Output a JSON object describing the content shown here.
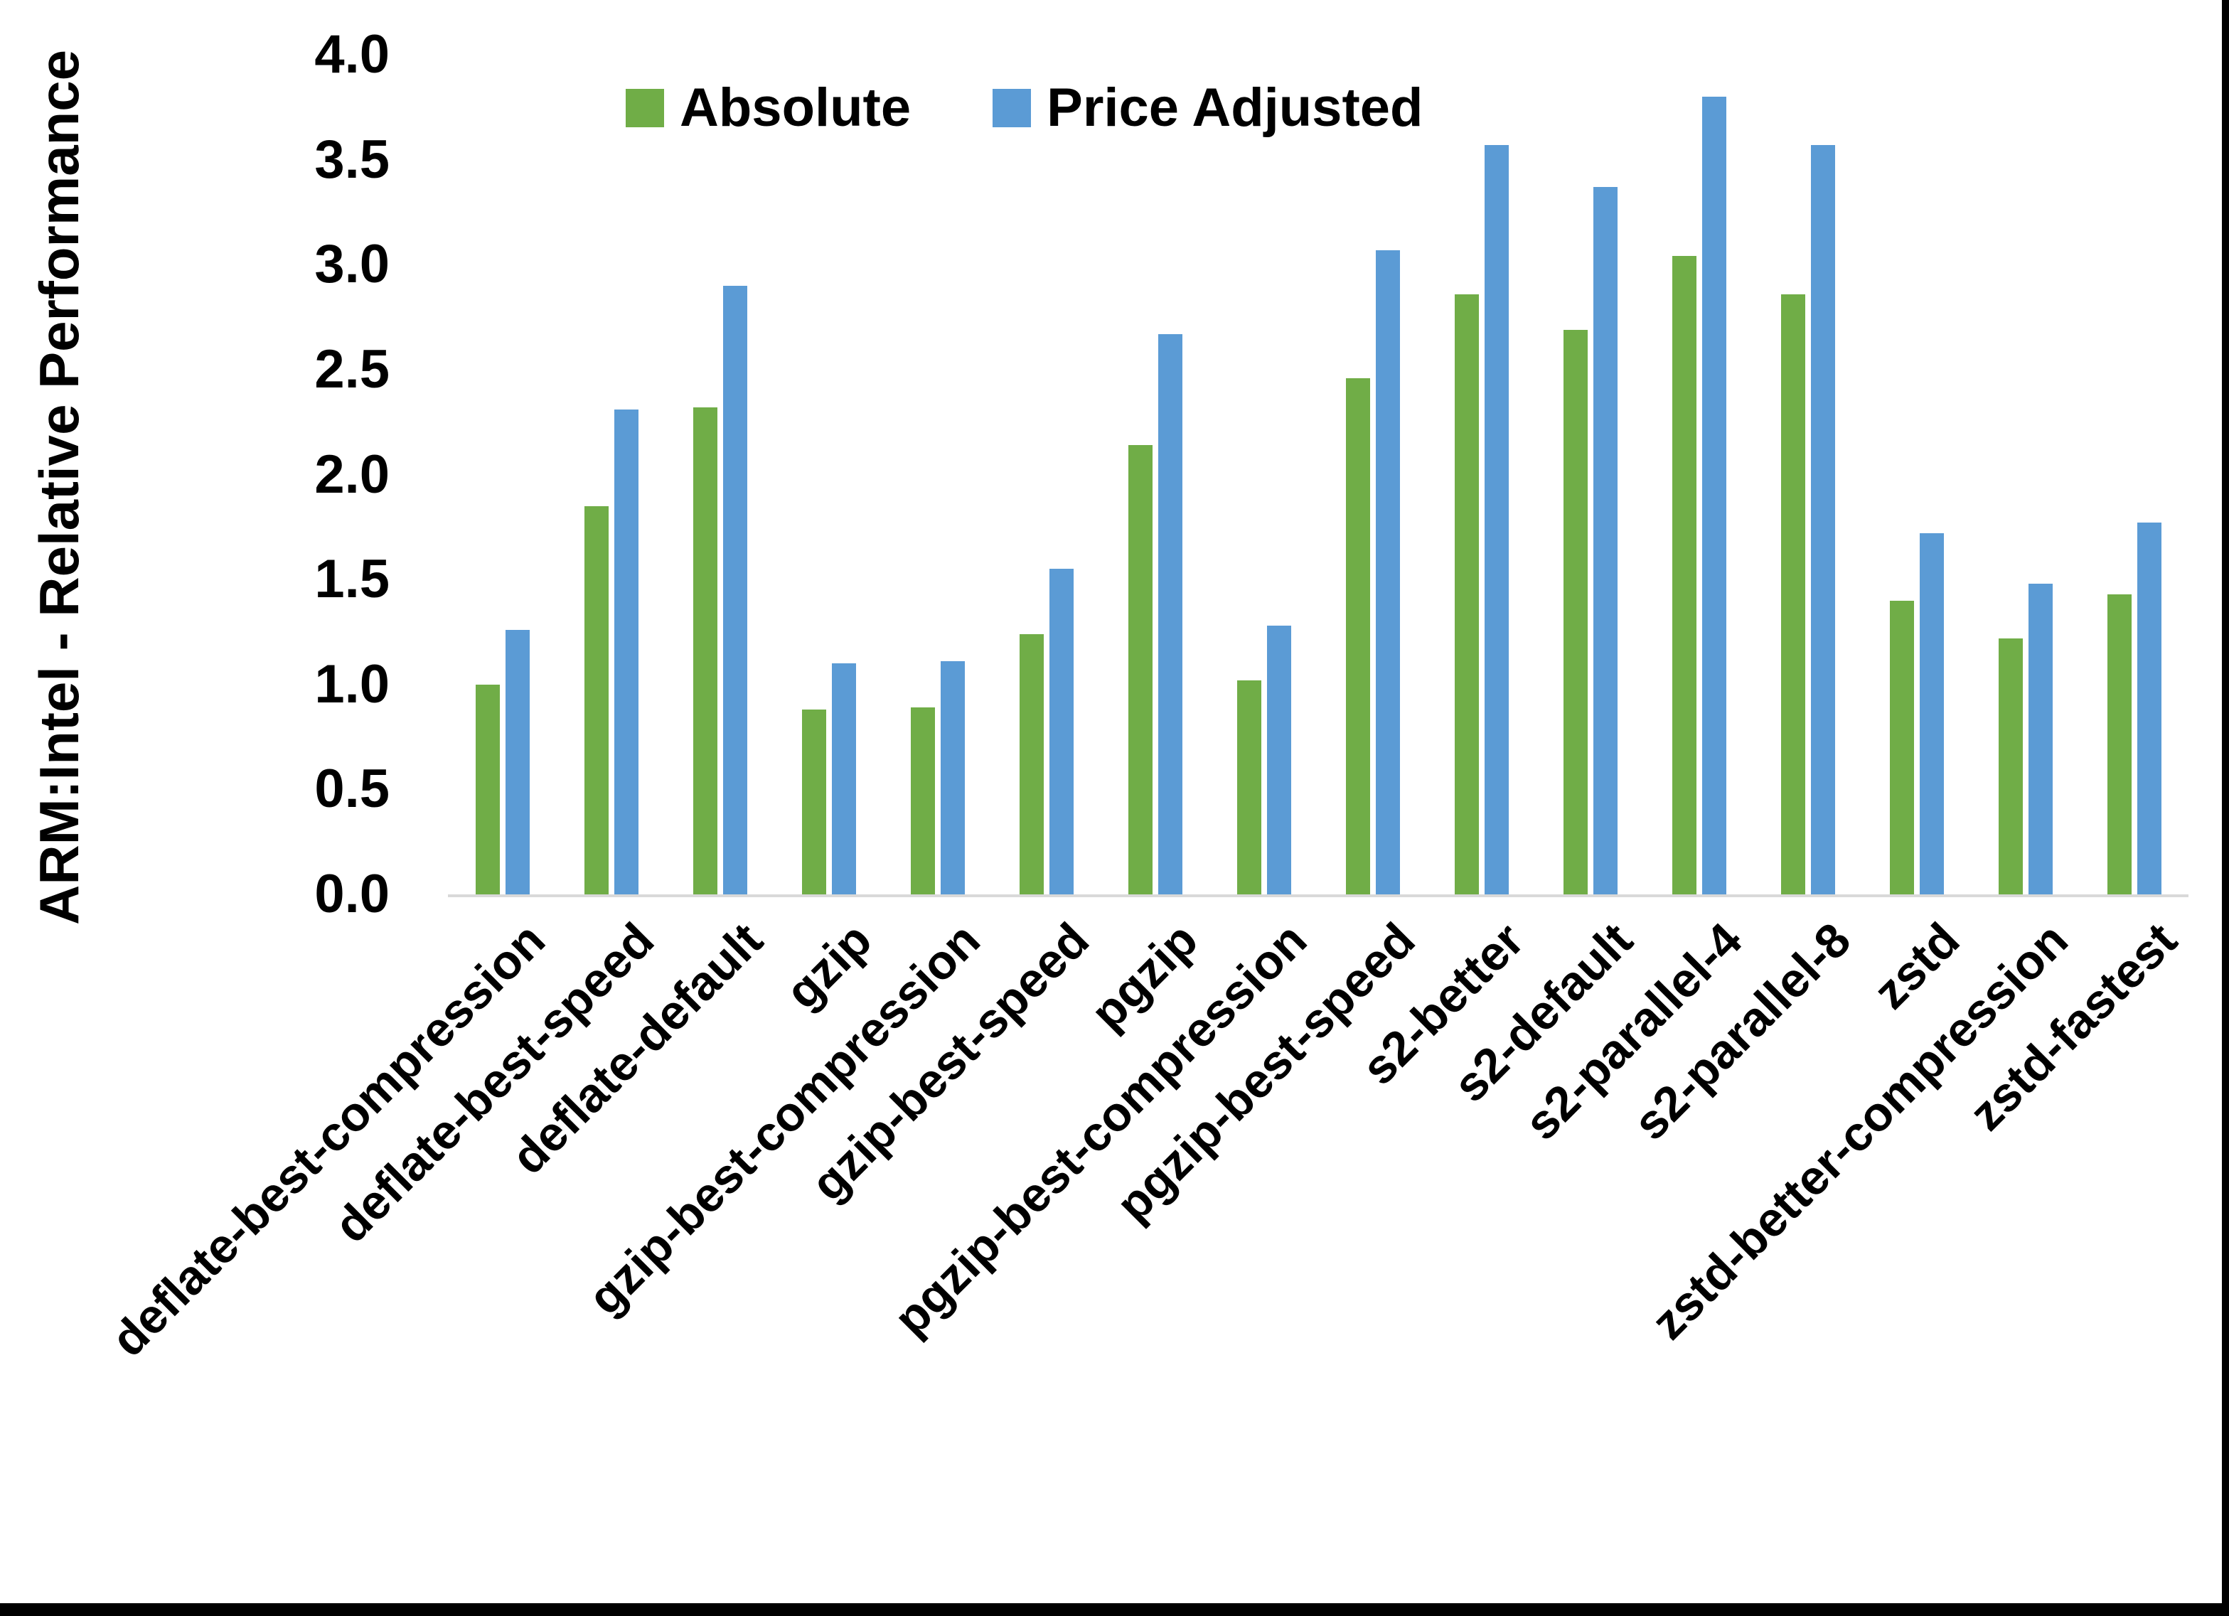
{
  "figure": {
    "background": "#ffffff",
    "frame_border_color": "#000000"
  },
  "chart_data": {
    "type": "bar",
    "title": "",
    "xlabel": "",
    "ylabel": "ARM:Intel - Relative Performance",
    "ylim": [
      0.0,
      4.0
    ],
    "ytick_labels": [
      "0.0",
      "0.5",
      "1.0",
      "1.5",
      "2.0",
      "2.5",
      "3.0",
      "3.5",
      "4.0"
    ],
    "grid": false,
    "legend_position": "top-center",
    "axis_line_color": "#d9d9d9",
    "text_color": "#000000",
    "categories": [
      "deflate-best-compression",
      "deflate-best-speed",
      "deflate-default",
      "gzip",
      "gzip-best-compression",
      "gzip-best-speed",
      "pgzip",
      "pgzip-best-compression",
      "pgzip-best-speed",
      "s2-better",
      "s2-default",
      "s2-parallel-4",
      "s2-parallel-8",
      "zstd",
      "zstd-better-compression",
      "zstd-fastest"
    ],
    "series": [
      {
        "name": "Absolute",
        "color": "#70AD47",
        "values": [
          1.0,
          1.85,
          2.32,
          0.88,
          0.89,
          1.24,
          2.14,
          1.02,
          2.46,
          2.86,
          2.69,
          3.04,
          2.86,
          1.4,
          1.22,
          1.43
        ]
      },
      {
        "name": "Price Adjusted",
        "color": "#5B9BD5",
        "values": [
          1.26,
          2.31,
          2.9,
          1.1,
          1.11,
          1.55,
          2.67,
          1.28,
          3.07,
          3.57,
          3.37,
          3.8,
          3.57,
          1.72,
          1.48,
          1.77
        ]
      }
    ]
  }
}
